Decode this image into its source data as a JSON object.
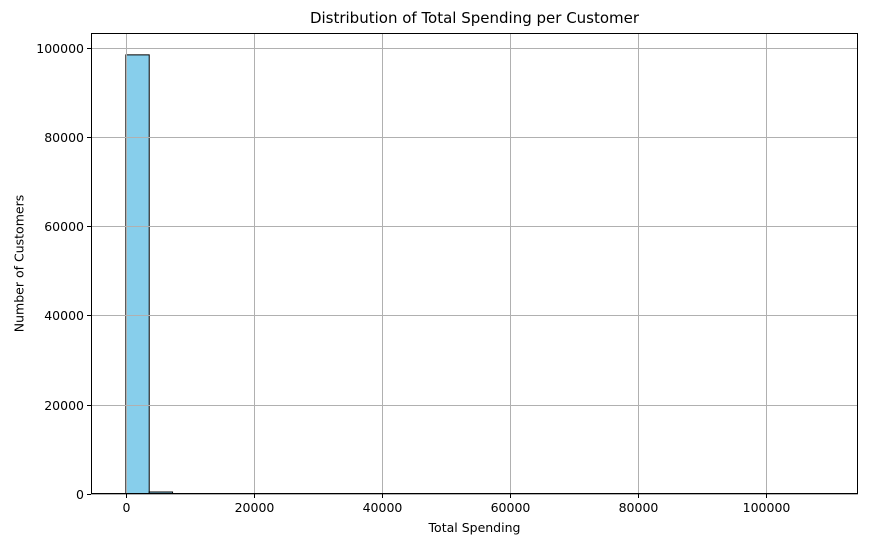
{
  "chart_data": {
    "type": "bar",
    "title": "Distribution of Total Spending per Customer",
    "xlabel": "Total Spending",
    "ylabel": "Number of Customers",
    "xlim": [
      -5450,
      114450
    ],
    "ylim": [
      0,
      103300
    ],
    "x_ticks": [
      0,
      20000,
      40000,
      60000,
      80000,
      100000
    ],
    "y_ticks": [
      0,
      20000,
      40000,
      60000,
      80000,
      100000
    ],
    "grid": true,
    "bar_color": "#87ceeb",
    "edge_color": "#000000",
    "bins": [
      {
        "x0": 0,
        "x1": 3650,
        "value": 98400
      },
      {
        "x0": 3650,
        "x1": 7300,
        "value": 450
      },
      {
        "x0": 7300,
        "x1": 10950,
        "value": 60
      },
      {
        "x0": 10950,
        "x1": 14600,
        "value": 20
      },
      {
        "x0": 14600,
        "x1": 18250,
        "value": 8
      },
      {
        "x0": 18250,
        "x1": 21900,
        "value": 4
      },
      {
        "x0": 21900,
        "x1": 25550,
        "value": 3
      },
      {
        "x0": 25550,
        "x1": 29200,
        "value": 2
      },
      {
        "x0": 29200,
        "x1": 32850,
        "value": 1
      },
      {
        "x0": 32850,
        "x1": 36500,
        "value": 1
      },
      {
        "x0": 36500,
        "x1": 40150,
        "value": 1
      },
      {
        "x0": 40150,
        "x1": 43800,
        "value": 0
      },
      {
        "x0": 43800,
        "x1": 47450,
        "value": 1
      },
      {
        "x0": 47450,
        "x1": 51100,
        "value": 0
      },
      {
        "x0": 51100,
        "x1": 54750,
        "value": 0
      },
      {
        "x0": 54750,
        "x1": 58400,
        "value": 0
      },
      {
        "x0": 58400,
        "x1": 62050,
        "value": 0
      },
      {
        "x0": 62050,
        "x1": 65700,
        "value": 0
      },
      {
        "x0": 65700,
        "x1": 69350,
        "value": 0
      },
      {
        "x0": 69350,
        "x1": 73000,
        "value": 0
      },
      {
        "x0": 73000,
        "x1": 76650,
        "value": 0
      },
      {
        "x0": 76650,
        "x1": 80300,
        "value": 0
      },
      {
        "x0": 80300,
        "x1": 83950,
        "value": 0
      },
      {
        "x0": 83950,
        "x1": 87600,
        "value": 0
      },
      {
        "x0": 87600,
        "x1": 91250,
        "value": 0
      },
      {
        "x0": 91250,
        "x1": 94900,
        "value": 0
      },
      {
        "x0": 94900,
        "x1": 98550,
        "value": 0
      },
      {
        "x0": 98550,
        "x1": 102200,
        "value": 0
      },
      {
        "x0": 102200,
        "x1": 105850,
        "value": 0
      },
      {
        "x0": 105850,
        "x1": 109500,
        "value": 1
      }
    ]
  }
}
